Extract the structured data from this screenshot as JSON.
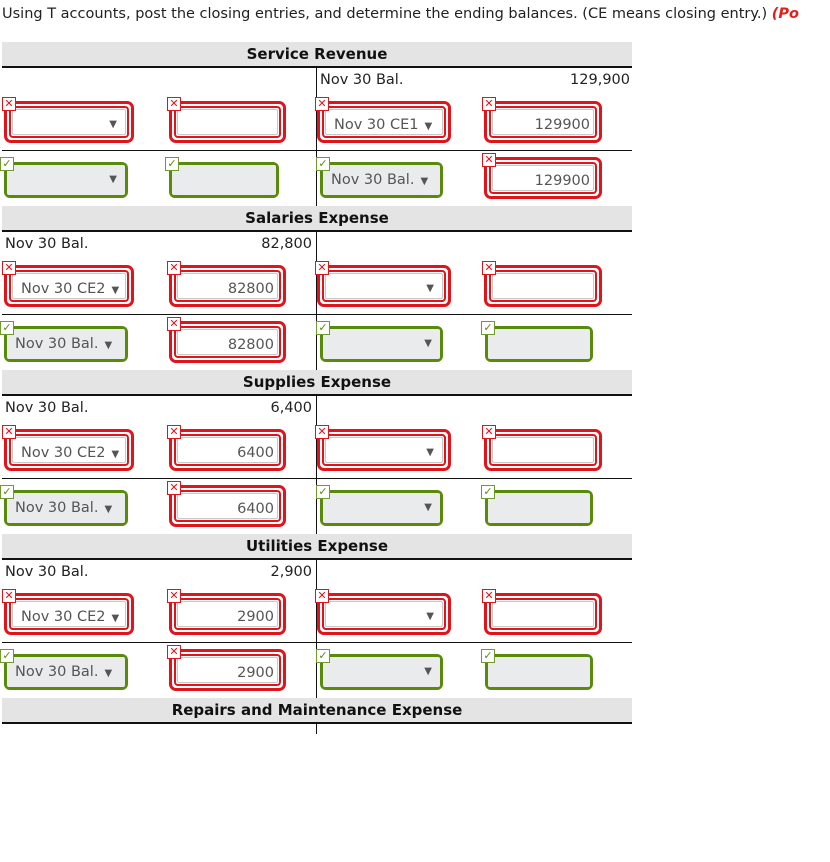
{
  "instruction": {
    "text": "Using T accounts, post the closing entries, and determine the ending balances. (CE means closing entry.) ",
    "points_fragment": "(Po"
  },
  "colors": {
    "incorrect": "#e0141b",
    "correct": "#5a8a0c",
    "header_bg": "#e4e4e4"
  },
  "icons": {
    "incorrect": "✕",
    "correct": "✓",
    "dropdown": "▼"
  },
  "accounts": [
    {
      "title": "Service Revenue",
      "balance": {
        "side": "right",
        "label": "Nov 30 Bal.",
        "amount": "129,900"
      },
      "rows": [
        [
          {
            "type": "select",
            "value": "",
            "status": "incorrect"
          },
          {
            "type": "input",
            "value": "",
            "status": "incorrect"
          },
          {
            "type": "select",
            "value": "Nov 30 CE1",
            "status": "incorrect"
          },
          {
            "type": "input",
            "value": "129900",
            "status": "incorrect"
          }
        ],
        [
          {
            "type": "select",
            "value": "",
            "status": "correct"
          },
          {
            "type": "input",
            "value": "",
            "status": "correct"
          },
          {
            "type": "select",
            "value": "Nov 30 Bal.",
            "status": "correct"
          },
          {
            "type": "input",
            "value": "129900",
            "status": "incorrect"
          }
        ]
      ]
    },
    {
      "title": "Salaries Expense",
      "balance": {
        "side": "left",
        "label": "Nov 30 Bal.",
        "amount": "82,800"
      },
      "rows": [
        [
          {
            "type": "select",
            "value": "Nov 30 CE2",
            "status": "incorrect"
          },
          {
            "type": "input",
            "value": "82800",
            "status": "incorrect"
          },
          {
            "type": "select",
            "value": "",
            "status": "incorrect"
          },
          {
            "type": "input",
            "value": "",
            "status": "incorrect"
          }
        ],
        [
          {
            "type": "select",
            "value": "Nov 30 Bal.",
            "status": "correct"
          },
          {
            "type": "input",
            "value": "82800",
            "status": "incorrect"
          },
          {
            "type": "select",
            "value": "",
            "status": "correct"
          },
          {
            "type": "input",
            "value": "",
            "status": "correct"
          }
        ]
      ]
    },
    {
      "title": "Supplies Expense",
      "balance": {
        "side": "left",
        "label": "Nov 30 Bal.",
        "amount": "6,400"
      },
      "rows": [
        [
          {
            "type": "select",
            "value": "Nov 30 CE2",
            "status": "incorrect"
          },
          {
            "type": "input",
            "value": "6400",
            "status": "incorrect"
          },
          {
            "type": "select",
            "value": "",
            "status": "incorrect"
          },
          {
            "type": "input",
            "value": "",
            "status": "incorrect"
          }
        ],
        [
          {
            "type": "select",
            "value": "Nov 30 Bal.",
            "status": "correct"
          },
          {
            "type": "input",
            "value": "6400",
            "status": "incorrect"
          },
          {
            "type": "select",
            "value": "",
            "status": "correct"
          },
          {
            "type": "input",
            "value": "",
            "status": "correct"
          }
        ]
      ]
    },
    {
      "title": "Utilities Expense",
      "balance": {
        "side": "left",
        "label": "Nov 30 Bal.",
        "amount": "2,900"
      },
      "rows": [
        [
          {
            "type": "select",
            "value": "Nov 30 CE2",
            "status": "incorrect"
          },
          {
            "type": "input",
            "value": "2900",
            "status": "incorrect"
          },
          {
            "type": "select",
            "value": "",
            "status": "incorrect"
          },
          {
            "type": "input",
            "value": "",
            "status": "incorrect"
          }
        ],
        [
          {
            "type": "select",
            "value": "Nov 30 Bal.",
            "status": "correct"
          },
          {
            "type": "input",
            "value": "2900",
            "status": "incorrect"
          },
          {
            "type": "select",
            "value": "",
            "status": "correct"
          },
          {
            "type": "input",
            "value": "",
            "status": "correct"
          }
        ]
      ]
    },
    {
      "title": "Repairs and Maintenance Expense",
      "balance": null,
      "rows": []
    }
  ]
}
